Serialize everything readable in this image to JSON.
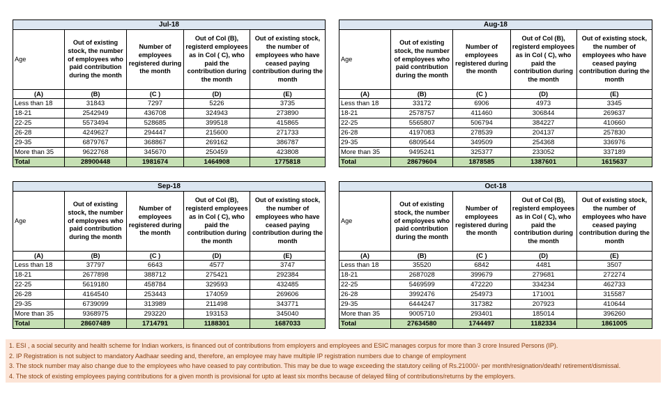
{
  "columns": {
    "age_label": "Age",
    "b": "Out of existing stock, the number of employees who paid contribution during the month",
    "c": "Number of employees registered during the month",
    "d": "Out of Col (B), registerd employees as in Col ( C), who paid the contribution during the month",
    "e": "Out of existing stock, the number of employees who have ceased paying contribution during the month",
    "letters": [
      "(A)",
      "(B)",
      "(C )",
      "(D)",
      "(E)"
    ]
  },
  "tables": [
    {
      "title": "Jul-18",
      "rows": [
        {
          "age": "Less than 18",
          "b": "31843",
          "c": "7297",
          "d": "5226",
          "e": "3735"
        },
        {
          "age": "18-21",
          "b": "2542949",
          "c": "436708",
          "d": "324943",
          "e": "273890"
        },
        {
          "age": "22-25",
          "b": "5573494",
          "c": "528685",
          "d": "399518",
          "e": "415865"
        },
        {
          "age": "26-28",
          "b": "4249627",
          "c": "294447",
          "d": "215600",
          "e": "271733"
        },
        {
          "age": "29-35",
          "b": "6879767",
          "c": "368867",
          "d": "269162",
          "e": "386787"
        },
        {
          "age": "More than 35",
          "b": "9622768",
          "c": "345670",
          "d": "250459",
          "e": "423808"
        }
      ],
      "total": {
        "age": "Total",
        "b": "28900448",
        "c": "1981674",
        "d": "1464908",
        "e": "1775818"
      }
    },
    {
      "title": "Aug-18",
      "rows": [
        {
          "age": "Less than 18",
          "b": "33172",
          "c": "6906",
          "d": "4973",
          "e": "3345"
        },
        {
          "age": "18-21",
          "b": "2578757",
          "c": "411460",
          "d": "306844",
          "e": "269637"
        },
        {
          "age": "22-25",
          "b": "5565807",
          "c": "506794",
          "d": "384227",
          "e": "410660"
        },
        {
          "age": "26-28",
          "b": "4197083",
          "c": "278539",
          "d": "204137",
          "e": "257830"
        },
        {
          "age": "29-35",
          "b": "6809544",
          "c": "349509",
          "d": "254368",
          "e": "336976"
        },
        {
          "age": "More than 35",
          "b": "9495241",
          "c": "325377",
          "d": "233052",
          "e": "337189"
        }
      ],
      "total": {
        "age": "Total",
        "b": "28679604",
        "c": "1878585",
        "d": "1387601",
        "e": "1615637"
      }
    },
    {
      "title": "Sep-18",
      "rows": [
        {
          "age": "Less than 18",
          "b": "37797",
          "c": "6643",
          "d": "4577",
          "e": "3747"
        },
        {
          "age": "18-21",
          "b": "2677898",
          "c": "388712",
          "d": "275421",
          "e": "292384"
        },
        {
          "age": "22-25",
          "b": "5619180",
          "c": "458784",
          "d": "329593",
          "e": "432485"
        },
        {
          "age": "26-28",
          "b": "4164540",
          "c": "253443",
          "d": "174059",
          "e": "269606"
        },
        {
          "age": "29-35",
          "b": "6739099",
          "c": "313989",
          "d": "211498",
          "e": "343771"
        },
        {
          "age": "More than 35",
          "b": "9368975",
          "c": "293220",
          "d": "193153",
          "e": "345040"
        }
      ],
      "total": {
        "age": "Total",
        "b": "28607489",
        "c": "1714791",
        "d": "1188301",
        "e": "1687033"
      }
    },
    {
      "title": "Oct-18",
      "rows": [
        {
          "age": "Less than 18",
          "b": "35520",
          "c": "6842",
          "d": "4481",
          "e": "3507"
        },
        {
          "age": "18-21",
          "b": "2687028",
          "c": "399679",
          "d": "279681",
          "e": "272274"
        },
        {
          "age": "22-25",
          "b": "5469599",
          "c": "472220",
          "d": "334234",
          "e": "462733"
        },
        {
          "age": "26-28",
          "b": "3992476",
          "c": "254973",
          "d": "171001",
          "e": "315587"
        },
        {
          "age": "29-35",
          "b": "6444247",
          "c": "317382",
          "d": "207923",
          "e": "410644"
        },
        {
          "age": "More than 35",
          "b": "9005710",
          "c": "293401",
          "d": "185014",
          "e": "396260"
        }
      ],
      "total": {
        "age": "Total",
        "b": "27634580",
        "c": "1744497",
        "d": "1182334",
        "e": "1861005"
      }
    }
  ],
  "notes": [
    "1. ESI , a social security and health scheme for Indian workers, is financed out of contributions from employers and employees and ESIC manages corpus for more than 3 crore Insured Persons (IP).",
    "2. IP Registration is not subject to mandatory Aadhaar seeding and, therefore, an employee may have multiple IP registration numbers due to change of employment",
    "3. The stock number may also change due to the employees who have ceased to pay contribution. This may be due to wage exceeding the statutory ceiling of Rs.21000/- per month/resignation/death/ retirement/dismissal.",
    "4. The stock of existing employees paying contributions for a given month is provisional for upto at least six months because of delayed filing of contributions/returns by the employers."
  ],
  "colors": {
    "month_header_bg": "#dce6f1",
    "total_row_bg": "#c6e0b4",
    "notes_bg": "#fce4d6",
    "notes_text": "#843c0c",
    "table_border": "#000000"
  }
}
